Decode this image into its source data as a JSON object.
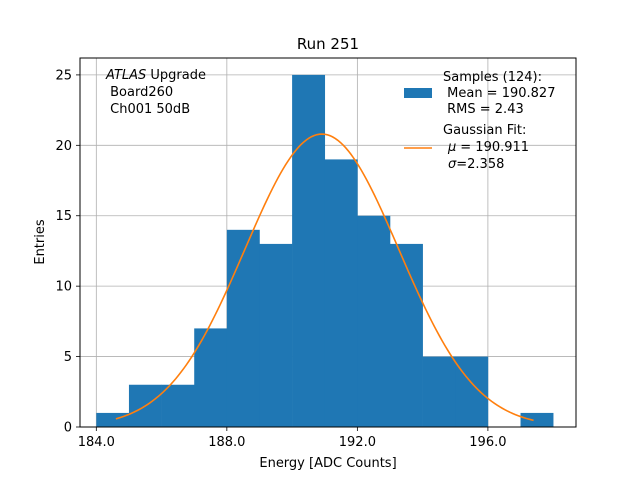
{
  "chart_data": {
    "type": "bar",
    "title": "Run 251",
    "xlabel": "Energy [ADC Counts]",
    "ylabel": "Entries",
    "xlim": [
      183.5,
      198.7
    ],
    "ylim": [
      0,
      26.2
    ],
    "xticks": [
      {
        "value": 184,
        "label": "184.0"
      },
      {
        "value": 188,
        "label": "188.0"
      },
      {
        "value": 192,
        "label": "192.0"
      },
      {
        "value": 196,
        "label": "196.0"
      }
    ],
    "yticks": [
      0,
      5,
      10,
      15,
      20,
      25
    ],
    "grid": true,
    "bar_color": "#1f77b4",
    "fit_color": "#ff7f0e",
    "bins": [
      {
        "x0": 184,
        "x1": 185,
        "count": 1
      },
      {
        "x0": 185,
        "x1": 186,
        "count": 3
      },
      {
        "x0": 186,
        "x1": 187,
        "count": 3
      },
      {
        "x0": 187,
        "x1": 188,
        "count": 7
      },
      {
        "x0": 188,
        "x1": 189,
        "count": 14
      },
      {
        "x0": 189,
        "x1": 190,
        "count": 13
      },
      {
        "x0": 190,
        "x1": 191,
        "count": 25
      },
      {
        "x0": 191,
        "x1": 192,
        "count": 19
      },
      {
        "x0": 192,
        "x1": 193,
        "count": 15
      },
      {
        "x0": 193,
        "x1": 194,
        "count": 13
      },
      {
        "x0": 194,
        "x1": 195,
        "count": 5
      },
      {
        "x0": 195,
        "x1": 196,
        "count": 5
      },
      {
        "x0": 196,
        "x1": 197,
        "count": 0
      },
      {
        "x0": 197,
        "x1": 198,
        "count": 1
      }
    ],
    "fit": {
      "mu": 190.911,
      "sigma": 2.358,
      "amplitude": 20.8,
      "x_range": [
        184.6,
        197.4
      ]
    },
    "annotation": {
      "italic": "ATLAS",
      "line1_rest": " Upgrade",
      "line2": " Board260",
      "line3": " Ch001 50dB"
    },
    "legend": {
      "position": "top-right",
      "samples_lines": [
        "Samples (124):",
        " Mean = 190.827",
        " RMS = 2.43"
      ],
      "fit_lines": [
        "Gaussian Fit:",
        "= 190.911",
        "=2.358"
      ],
      "mu_symbol": "μ",
      "sigma_symbol": "σ"
    }
  }
}
